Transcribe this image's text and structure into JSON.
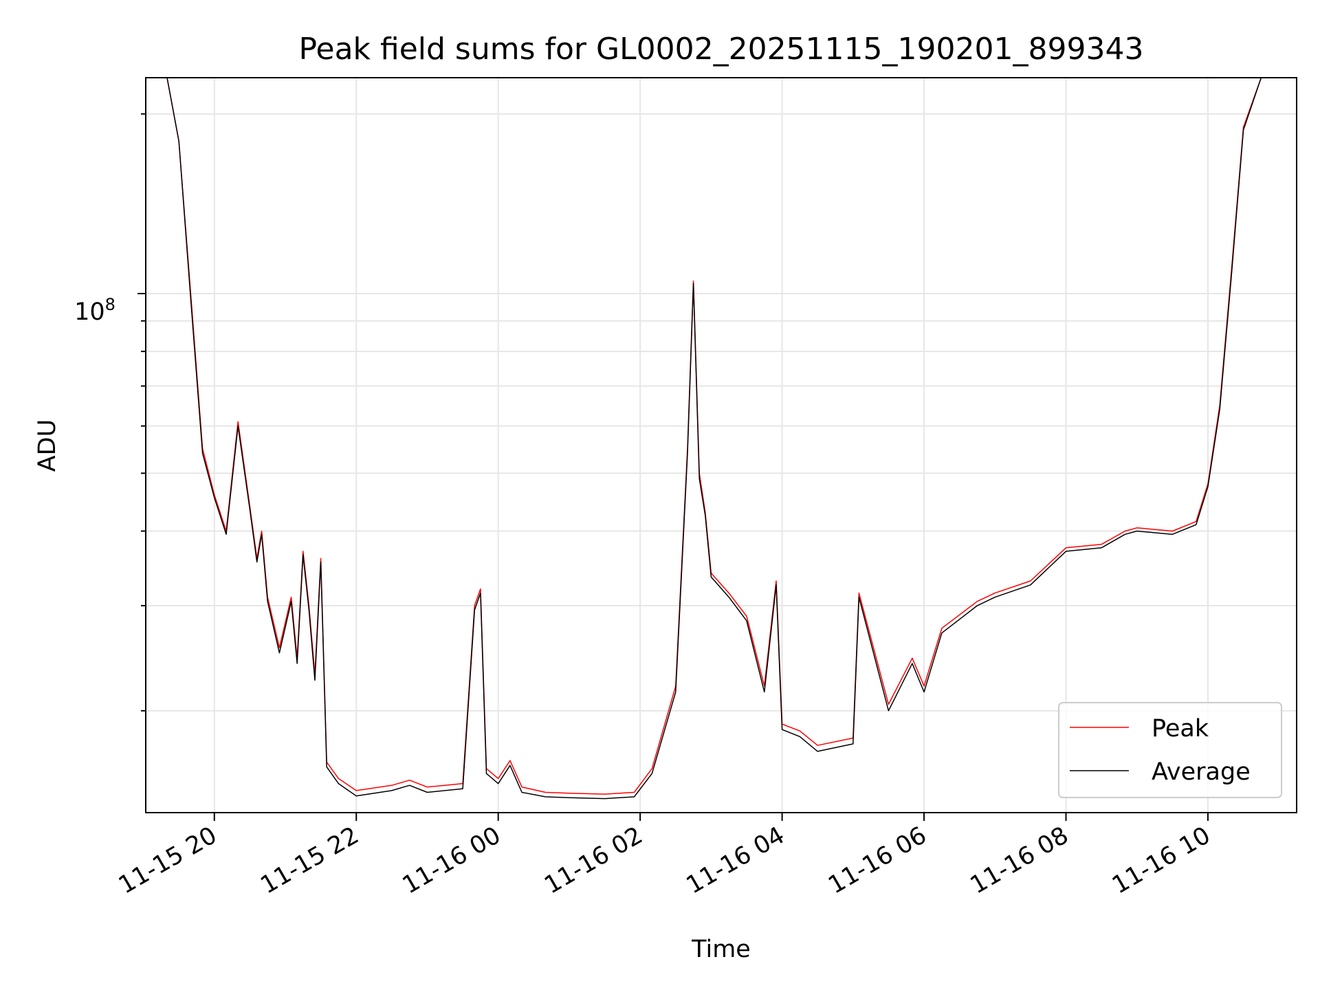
{
  "chart_data": {
    "type": "line",
    "title": "Peak field sums for GL0002_20251115_190201_899343",
    "xlabel": "Time",
    "ylabel": "ADU",
    "y_scale": "log",
    "ylim": [
      13500000,
      230000000
    ],
    "xlim": [
      "2025-11-15 19:02",
      "2025-11-16 11:15"
    ],
    "x_ticks": [
      "11-15 20",
      "11-15 22",
      "11-16 00",
      "11-16 02",
      "11-16 04",
      "11-16 06",
      "11-16 08",
      "11-16 10"
    ],
    "y_tick_major": {
      "base": "10",
      "exponent": "8",
      "value": 100000000
    },
    "grid": true,
    "legend_position": "lower right",
    "colors": {
      "Peak": "#ff0000",
      "Average": "#000000"
    },
    "series": [
      {
        "name": "Peak",
        "x": [
          "2025-11-15 19:20",
          "2025-11-15 19:30",
          "2025-11-15 19:40",
          "2025-11-15 19:50",
          "2025-11-15 20:00",
          "2025-11-15 20:10",
          "2025-11-15 20:20",
          "2025-11-15 20:30",
          "2025-11-15 20:36",
          "2025-11-15 20:40",
          "2025-11-15 20:45",
          "2025-11-15 20:55",
          "2025-11-15 21:05",
          "2025-11-15 21:10",
          "2025-11-15 21:15",
          "2025-11-15 21:20",
          "2025-11-15 21:25",
          "2025-11-15 21:30",
          "2025-11-15 21:35",
          "2025-11-15 21:45",
          "2025-11-15 22:00",
          "2025-11-15 22:30",
          "2025-11-15 22:45",
          "2025-11-15 23:00",
          "2025-11-15 23:30",
          "2025-11-15 23:40",
          "2025-11-15 23:45",
          "2025-11-15 23:50",
          "2025-11-16 00:00",
          "2025-11-16 00:10",
          "2025-11-16 00:20",
          "2025-11-16 00:40",
          "2025-11-16 01:00",
          "2025-11-16 01:30",
          "2025-11-16 01:55",
          "2025-11-16 02:10",
          "2025-11-16 02:30",
          "2025-11-16 02:40",
          "2025-11-16 02:45",
          "2025-11-16 02:50",
          "2025-11-16 02:55",
          "2025-11-16 03:00",
          "2025-11-16 03:15",
          "2025-11-16 03:30",
          "2025-11-16 03:45",
          "2025-11-16 03:55",
          "2025-11-16 04:00",
          "2025-11-16 04:15",
          "2025-11-16 04:30",
          "2025-11-16 05:00",
          "2025-11-16 05:05",
          "2025-11-16 05:30",
          "2025-11-16 05:50",
          "2025-11-16 06:00",
          "2025-11-16 06:15",
          "2025-11-16 06:45",
          "2025-11-16 07:00",
          "2025-11-16 07:30",
          "2025-11-16 08:00",
          "2025-11-16 08:30",
          "2025-11-16 08:50",
          "2025-11-16 09:00",
          "2025-11-16 09:30",
          "2025-11-16 09:50",
          "2025-11-16 10:00",
          "2025-11-16 10:10",
          "2025-11-16 10:20",
          "2025-11-16 10:30",
          "2025-11-16 10:45",
          "2025-11-16 11:15"
        ],
        "y": [
          230000000,
          180000000,
          100000000,
          55000000,
          46000000,
          40000000,
          61000000,
          44000000,
          36000000,
          40000000,
          31000000,
          25500000,
          31000000,
          24500000,
          37000000,
          30000000,
          23000000,
          36000000,
          16400000,
          15400000,
          14700000,
          15000000,
          15300000,
          14900000,
          15100000,
          30000000,
          32000000,
          16000000,
          15400000,
          16500000,
          14900000,
          14600000,
          14550000,
          14500000,
          14600000,
          16000000,
          22000000,
          55000000,
          105000000,
          50000000,
          43000000,
          34000000,
          31500000,
          28800000,
          22000000,
          33000000,
          19000000,
          18500000,
          17500000,
          18000000,
          31500000,
          20500000,
          24500000,
          22000000,
          27500000,
          30500000,
          31500000,
          33000000,
          37500000,
          38000000,
          40000000,
          40500000,
          40000000,
          41500000,
          48000000,
          65000000,
          110000000,
          190000000,
          230000000,
          230000000
        ]
      },
      {
        "name": "Average",
        "x": [
          "2025-11-15 19:20",
          "2025-11-15 19:30",
          "2025-11-15 19:40",
          "2025-11-15 19:50",
          "2025-11-15 20:00",
          "2025-11-15 20:10",
          "2025-11-15 20:20",
          "2025-11-15 20:30",
          "2025-11-15 20:36",
          "2025-11-15 20:40",
          "2025-11-15 20:45",
          "2025-11-15 20:55",
          "2025-11-15 21:05",
          "2025-11-15 21:10",
          "2025-11-15 21:15",
          "2025-11-15 21:20",
          "2025-11-15 21:25",
          "2025-11-15 21:30",
          "2025-11-15 21:35",
          "2025-11-15 21:45",
          "2025-11-15 22:00",
          "2025-11-15 22:30",
          "2025-11-15 22:45",
          "2025-11-15 23:00",
          "2025-11-15 23:30",
          "2025-11-15 23:40",
          "2025-11-15 23:45",
          "2025-11-15 23:50",
          "2025-11-16 00:00",
          "2025-11-16 00:10",
          "2025-11-16 00:20",
          "2025-11-16 00:40",
          "2025-11-16 01:00",
          "2025-11-16 01:30",
          "2025-11-16 01:55",
          "2025-11-16 02:10",
          "2025-11-16 02:30",
          "2025-11-16 02:40",
          "2025-11-16 02:45",
          "2025-11-16 02:50",
          "2025-11-16 02:55",
          "2025-11-16 03:00",
          "2025-11-16 03:15",
          "2025-11-16 03:30",
          "2025-11-16 03:45",
          "2025-11-16 03:55",
          "2025-11-16 04:00",
          "2025-11-16 04:15",
          "2025-11-16 04:30",
          "2025-11-16 05:00",
          "2025-11-16 05:05",
          "2025-11-16 05:30",
          "2025-11-16 05:50",
          "2025-11-16 06:00",
          "2025-11-16 06:15",
          "2025-11-16 06:45",
          "2025-11-16 07:00",
          "2025-11-16 07:30",
          "2025-11-16 08:00",
          "2025-11-16 08:30",
          "2025-11-16 08:50",
          "2025-11-16 09:00",
          "2025-11-16 09:30",
          "2025-11-16 09:50",
          "2025-11-16 10:00",
          "2025-11-16 10:10",
          "2025-11-16 10:20",
          "2025-11-16 10:30",
          "2025-11-16 10:45",
          "2025-11-16 11:15"
        ],
        "y": [
          230000000,
          180000000,
          98000000,
          54000000,
          45500000,
          39500000,
          60000000,
          43500000,
          35500000,
          39500000,
          30500000,
          25000000,
          30500000,
          24000000,
          36500000,
          29500000,
          22500000,
          35500000,
          16100000,
          15100000,
          14400000,
          14700000,
          15000000,
          14600000,
          14800000,
          29500000,
          31500000,
          15700000,
          15100000,
          16200000,
          14600000,
          14350000,
          14300000,
          14250000,
          14350000,
          15700000,
          21500000,
          54000000,
          104000000,
          49000000,
          42500000,
          33500000,
          31000000,
          28300000,
          21500000,
          32500000,
          18600000,
          18100000,
          17100000,
          17600000,
          31000000,
          20000000,
          24000000,
          21500000,
          27000000,
          30000000,
          31000000,
          32500000,
          37000000,
          37500000,
          39500000,
          40000000,
          39500000,
          41000000,
          47500000,
          64000000,
          108000000,
          188000000,
          230000000,
          230000000
        ]
      }
    ]
  }
}
